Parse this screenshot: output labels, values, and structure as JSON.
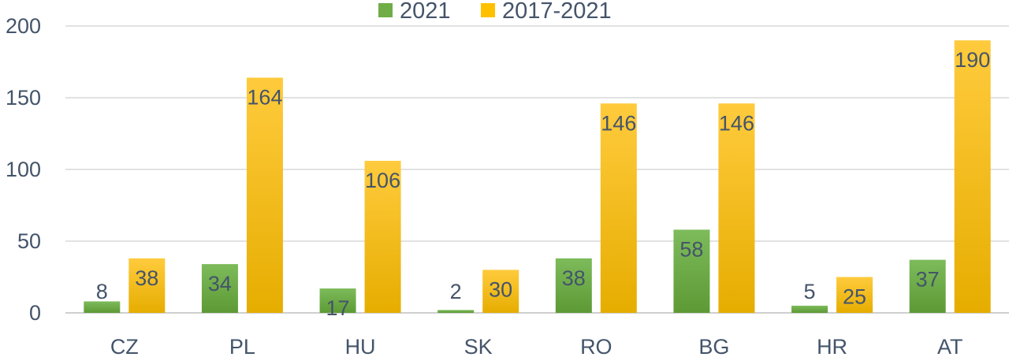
{
  "chart_data": {
    "type": "bar",
    "categories": [
      "CZ",
      "PL",
      "HU",
      "SK",
      "RO",
      "BG",
      "HR",
      "AT"
    ],
    "series": [
      {
        "name": "2021",
        "values": [
          8,
          34,
          17,
          2,
          38,
          58,
          5,
          37
        ],
        "color": "#70ad47"
      },
      {
        "name": "2017-2021",
        "values": [
          38,
          164,
          106,
          30,
          146,
          146,
          25,
          190
        ],
        "color": "#ffc000"
      }
    ],
    "ylim": [
      0,
      200
    ],
    "yticks": [
      0,
      50,
      100,
      150,
      200
    ],
    "grid": true,
    "legend": "top-center",
    "data_labels": true
  }
}
